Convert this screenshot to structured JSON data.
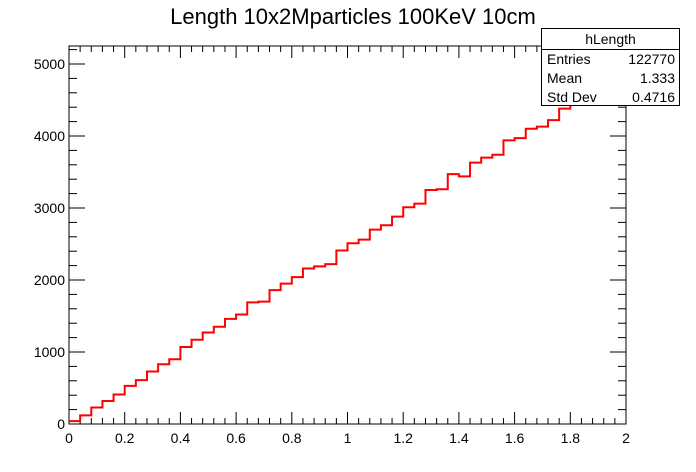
{
  "chart_data": {
    "type": "histogram",
    "title": "Length 10x2Mparticles 100KeV 10cm",
    "xlabel": "",
    "ylabel": "",
    "xlim": [
      0,
      2
    ],
    "ylim": [
      0,
      5250
    ],
    "x_ticks": [
      "0",
      "0.2",
      "0.4",
      "0.6",
      "0.8",
      "1",
      "1.2",
      "1.4",
      "1.6",
      "1.8",
      "2"
    ],
    "y_ticks": [
      "0",
      "1000",
      "2000",
      "3000",
      "4000",
      "5000"
    ],
    "bin_width": 0.04,
    "series": [
      {
        "color": "#ff0000",
        "values": [
          40,
          120,
          230,
          320,
          410,
          530,
          610,
          730,
          830,
          900,
          1070,
          1170,
          1270,
          1350,
          1460,
          1520,
          1690,
          1700,
          1860,
          1950,
          2040,
          2160,
          2190,
          2220,
          2410,
          2510,
          2560,
          2700,
          2760,
          2880,
          3010,
          3060,
          3250,
          3260,
          3470,
          3440,
          3630,
          3700,
          3740,
          3940,
          3970,
          4100,
          4130,
          4220,
          4380,
          4460,
          4540,
          4650,
          4770,
          4860
        ]
      }
    ],
    "grid": false
  },
  "stats": {
    "name": "hLength",
    "rows": [
      {
        "label": "Entries",
        "value": "122770"
      },
      {
        "label": "Mean",
        "value": "1.333"
      },
      {
        "label": "Std Dev",
        "value": "0.4716"
      }
    ]
  }
}
